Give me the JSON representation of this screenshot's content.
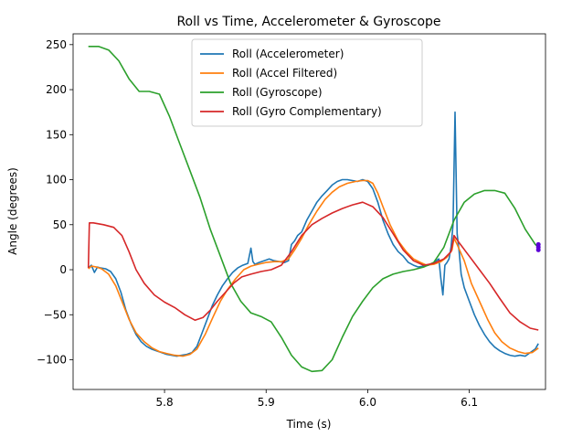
{
  "chart_data": {
    "type": "line",
    "title": "Roll vs Time, Accelerometer & Gyroscope",
    "xlabel": "Time (s)",
    "ylabel": "Angle (degrees)",
    "xlim": [
      5.71,
      6.175
    ],
    "ylim": [
      -133,
      262
    ],
    "xticks": [
      5.8,
      5.9,
      6.0,
      6.1
    ],
    "xtick_labels": [
      "5.8",
      "5.9",
      "6.0",
      "6.1"
    ],
    "yticks": [
      -100,
      -50,
      0,
      50,
      100,
      150,
      200,
      250
    ],
    "ytick_labels": [
      "−100",
      "−50",
      "0",
      "50",
      "100",
      "150",
      "200",
      "250"
    ],
    "grid": false,
    "legend_position": "top-center",
    "series": [
      {
        "name": "Roll (Accelerometer)",
        "color": "#1f77b4",
        "x": [
          5.725,
          5.728,
          5.731,
          5.734,
          5.737,
          5.742,
          5.747,
          5.752,
          5.757,
          5.762,
          5.767,
          5.772,
          5.777,
          5.782,
          5.787,
          5.792,
          5.797,
          5.802,
          5.807,
          5.812,
          5.817,
          5.822,
          5.827,
          5.832,
          5.837,
          5.842,
          5.847,
          5.852,
          5.857,
          5.862,
          5.867,
          5.872,
          5.877,
          5.882,
          5.885,
          5.887,
          5.889,
          5.893,
          5.898,
          5.903,
          5.908,
          5.913,
          5.918,
          5.922,
          5.925,
          5.928,
          5.931,
          5.935,
          5.94,
          5.945,
          5.95,
          5.955,
          5.96,
          5.965,
          5.97,
          5.975,
          5.98,
          5.985,
          5.99,
          5.995,
          6.0,
          6.005,
          6.01,
          6.015,
          6.02,
          6.025,
          6.03,
          6.035,
          6.04,
          6.045,
          6.05,
          6.055,
          6.06,
          6.065,
          6.07,
          6.072,
          6.074,
          6.076,
          6.078,
          6.08,
          6.082,
          6.084,
          6.086,
          6.088,
          6.09,
          6.092,
          6.095,
          6.1,
          6.105,
          6.11,
          6.115,
          6.12,
          6.125,
          6.13,
          6.135,
          6.14,
          6.145,
          6.15,
          6.155,
          6.16,
          6.165,
          6.168
        ],
        "y": [
          2,
          5,
          -3,
          3,
          2,
          1,
          -2,
          -10,
          -25,
          -45,
          -60,
          -72,
          -80,
          -85,
          -88,
          -90,
          -92,
          -94,
          -95,
          -96,
          -95,
          -94,
          -92,
          -85,
          -70,
          -55,
          -40,
          -28,
          -18,
          -10,
          -3,
          2,
          5,
          7,
          24,
          9,
          6,
          8,
          10,
          12,
          10,
          9,
          8,
          10,
          28,
          32,
          38,
          42,
          55,
          65,
          75,
          82,
          88,
          94,
          98,
          100,
          100,
          99,
          98,
          100,
          98,
          90,
          75,
          55,
          40,
          28,
          20,
          15,
          8,
          5,
          3,
          4,
          5,
          8,
          12,
          -10,
          -28,
          5,
          8,
          12,
          25,
          50,
          175,
          40,
          20,
          -5,
          -20,
          -35,
          -50,
          -62,
          -72,
          -80,
          -86,
          -90,
          -93,
          -95,
          -96,
          -95,
          -96,
          -92,
          -88,
          -82
        ]
      },
      {
        "name": "Roll (Accel Filtered)",
        "color": "#ff7f0e",
        "x": [
          5.725,
          5.728,
          5.733,
          5.738,
          5.745,
          5.752,
          5.758,
          5.765,
          5.772,
          5.78,
          5.788,
          5.795,
          5.802,
          5.81,
          5.818,
          5.825,
          5.832,
          5.84,
          5.848,
          5.855,
          5.862,
          5.87,
          5.878,
          5.885,
          5.892,
          5.9,
          5.908,
          5.915,
          5.922,
          5.928,
          5.935,
          5.942,
          5.95,
          5.958,
          5.965,
          5.972,
          5.98,
          5.988,
          5.995,
          6.0,
          6.005,
          6.01,
          6.015,
          6.022,
          6.03,
          6.038,
          6.045,
          6.052,
          6.058,
          6.065,
          6.072,
          6.078,
          6.083,
          6.085,
          6.088,
          6.095,
          6.102,
          6.11,
          6.118,
          6.125,
          6.132,
          6.14,
          6.148,
          6.155,
          6.162,
          6.168
        ],
        "y": [
          1,
          4,
          3,
          1,
          -5,
          -18,
          -35,
          -55,
          -70,
          -80,
          -87,
          -91,
          -93,
          -95,
          -96,
          -94,
          -88,
          -72,
          -52,
          -35,
          -22,
          -10,
          0,
          4,
          6,
          8,
          9,
          9,
          12,
          22,
          35,
          50,
          65,
          78,
          86,
          92,
          96,
          98,
          99,
          99,
          96,
          85,
          70,
          50,
          32,
          20,
          12,
          8,
          5,
          6,
          9,
          14,
          22,
          35,
          28,
          10,
          -15,
          -35,
          -55,
          -70,
          -80,
          -87,
          -91,
          -93,
          -92,
          -87
        ]
      },
      {
        "name": "Roll (Gyroscope)",
        "color": "#2ca02c",
        "x": [
          5.725,
          5.735,
          5.745,
          5.755,
          5.765,
          5.775,
          5.785,
          5.795,
          5.805,
          5.815,
          5.825,
          5.835,
          5.845,
          5.855,
          5.865,
          5.875,
          5.885,
          5.895,
          5.905,
          5.915,
          5.925,
          5.935,
          5.945,
          5.955,
          5.965,
          5.975,
          5.985,
          5.995,
          6.005,
          6.015,
          6.025,
          6.035,
          6.045,
          6.055,
          6.065,
          6.075,
          6.085,
          6.095,
          6.105,
          6.115,
          6.125,
          6.135,
          6.145,
          6.155,
          6.165,
          6.168
        ],
        "y": [
          248,
          248,
          244,
          232,
          212,
          198,
          198,
          195,
          170,
          140,
          110,
          80,
          45,
          15,
          -15,
          -35,
          -48,
          -52,
          -58,
          -75,
          -95,
          -108,
          -113,
          -112,
          -100,
          -75,
          -52,
          -35,
          -20,
          -10,
          -5,
          -2,
          0,
          3,
          8,
          25,
          55,
          75,
          84,
          88,
          88,
          85,
          68,
          45,
          28,
          25
        ]
      },
      {
        "name": "Roll (Gyro Complementary)",
        "color": "#d62728",
        "x": [
          5.725,
          5.726,
          5.73,
          5.74,
          5.75,
          5.758,
          5.765,
          5.772,
          5.78,
          5.79,
          5.8,
          5.81,
          5.82,
          5.83,
          5.838,
          5.845,
          5.852,
          5.86,
          5.868,
          5.876,
          5.885,
          5.895,
          5.905,
          5.915,
          5.925,
          5.935,
          5.945,
          5.955,
          5.965,
          5.975,
          5.985,
          5.995,
          6.005,
          6.015,
          6.025,
          6.035,
          6.045,
          6.055,
          6.065,
          6.075,
          6.082,
          6.085,
          6.09,
          6.1,
          6.11,
          6.12,
          6.13,
          6.14,
          6.15,
          6.16,
          6.168
        ],
        "y": [
          2,
          52,
          52,
          50,
          47,
          38,
          20,
          0,
          -15,
          -28,
          -36,
          -42,
          -50,
          -56,
          -53,
          -45,
          -35,
          -25,
          -15,
          -8,
          -5,
          -2,
          0,
          5,
          20,
          38,
          50,
          57,
          63,
          68,
          72,
          75,
          70,
          58,
          40,
          22,
          10,
          5,
          7,
          12,
          20,
          38,
          30,
          15,
          0,
          -15,
          -32,
          -48,
          -58,
          -65,
          -67
        ]
      }
    ]
  }
}
